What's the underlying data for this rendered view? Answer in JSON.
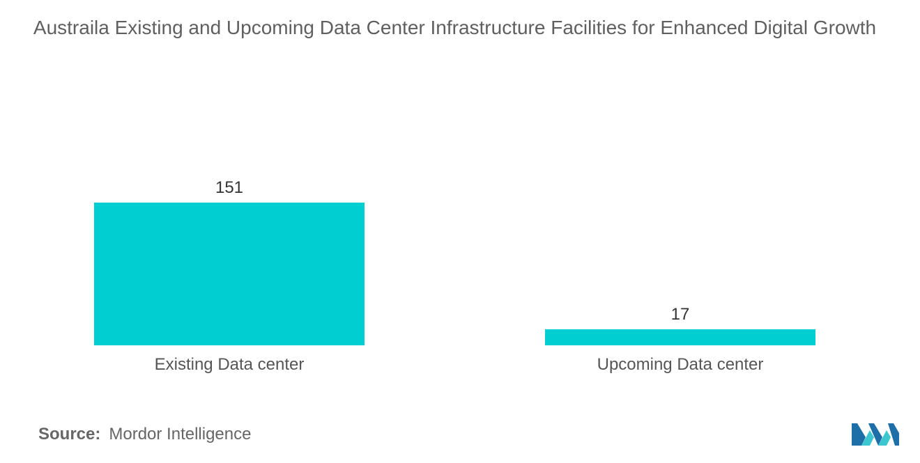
{
  "chart_data": {
    "type": "bar",
    "title": "Austraila Existing and Upcoming Data Center Infrastructure Facilities for Enhanced Digital Growth",
    "categories": [
      "Existing Data center",
      "Upcoming Data center"
    ],
    "values": [
      151,
      17
    ],
    "data_labels": [
      "151",
      "17"
    ],
    "xlabel": "",
    "ylabel": "",
    "ylim": [
      0,
      151
    ],
    "grid": false,
    "legend": "none",
    "bar_color": "#00ced1"
  },
  "source": {
    "key": "Source:",
    "value": "Mordor Intelligence"
  },
  "logo": {
    "icon": "mordor-intelligence-logo",
    "colors": [
      "#1e6fa8",
      "#3cc6d0"
    ]
  }
}
